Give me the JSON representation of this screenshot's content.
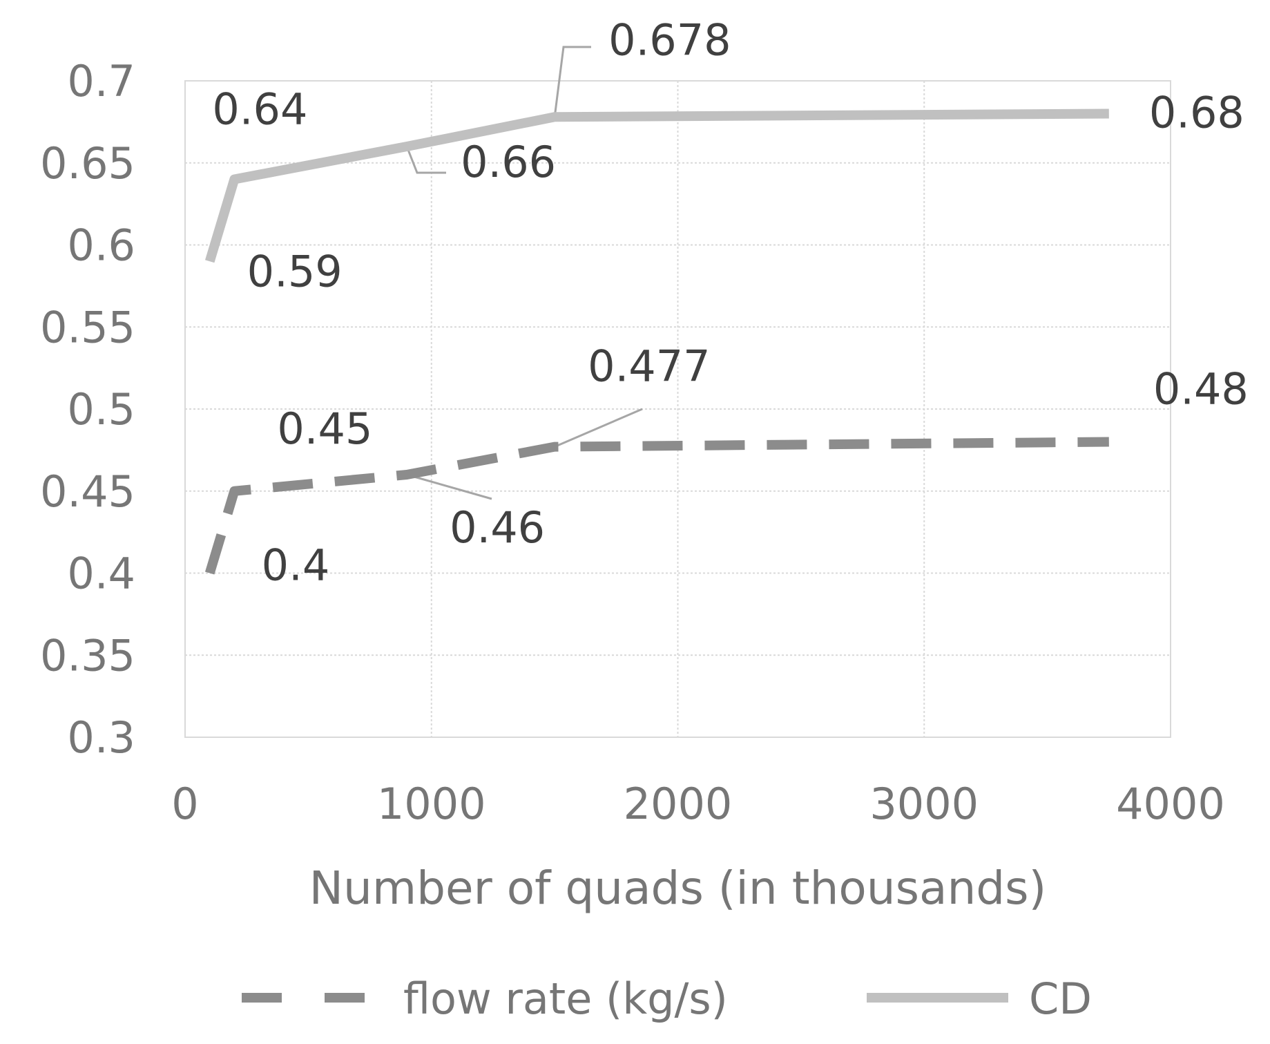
{
  "chart_data": {
    "type": "line",
    "title": "",
    "xlabel": "Number of quads (in thousands)",
    "ylabel": "",
    "xlim": [
      0,
      4000
    ],
    "ylim": [
      0.3,
      0.7
    ],
    "x_ticks": [
      0,
      1000,
      2000,
      3000,
      4000
    ],
    "x_tick_labels": [
      "0",
      "1000",
      "2000",
      "3000",
      "4000"
    ],
    "y_ticks": [
      0.3,
      0.35,
      0.4,
      0.45,
      0.5,
      0.55,
      0.6,
      0.65,
      0.7
    ],
    "y_tick_labels": [
      "0.3",
      "0.35",
      "0.4",
      "0.45",
      "0.5",
      "0.55",
      "0.6",
      "0.65",
      "0.7"
    ],
    "grid": true,
    "legend_position": "bottom",
    "series": [
      {
        "name": "flow rate (kg/s)",
        "style": "dashed",
        "color": "#8c8c8c",
        "x": [
          100,
          200,
          900,
          1500,
          3750
        ],
        "values": [
          0.4,
          0.45,
          0.46,
          0.477,
          0.48
        ],
        "labels": [
          "0.4",
          "0.45",
          "0.46",
          "0.477",
          "0.48"
        ]
      },
      {
        "name": "CD",
        "style": "solid",
        "color": "#c0c0c0",
        "x": [
          100,
          200,
          900,
          1500,
          3750
        ],
        "values": [
          0.59,
          0.64,
          0.66,
          0.678,
          0.68
        ],
        "labels": [
          "0.59",
          "0.64",
          "0.66",
          "0.678",
          "0.68"
        ]
      }
    ]
  }
}
